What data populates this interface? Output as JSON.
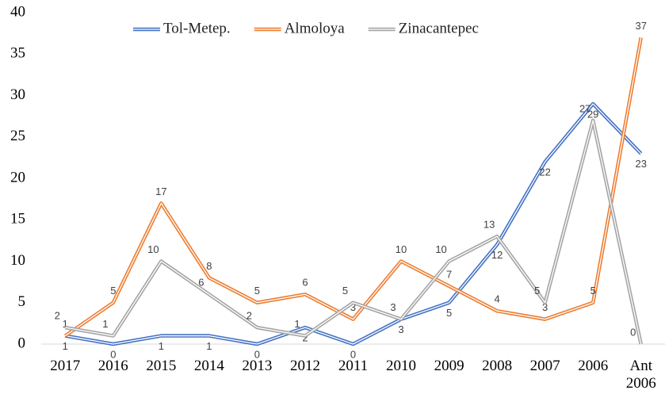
{
  "chart_data": {
    "type": "line",
    "categories": [
      "2017",
      "2016",
      "2015",
      "2014",
      "2013",
      "2012",
      "2011",
      "2010",
      "2009",
      "2008",
      "2007",
      "2006",
      "Ant 2006"
    ],
    "series": [
      {
        "name": "Tol-Metep.",
        "color": "#4472c4",
        "values": [
          1,
          0,
          1,
          1,
          0,
          2,
          0,
          3,
          5,
          12,
          22,
          29,
          23
        ]
      },
      {
        "name": "Almoloya",
        "color": "#ed7d31",
        "values": [
          1,
          5,
          17,
          8,
          5,
          6,
          3,
          10,
          7,
          4,
          3,
          5,
          37
        ]
      },
      {
        "name": "Zinacantepec",
        "color": "#a5a5a5",
        "values": [
          2,
          1,
          10,
          6,
          2,
          1,
          5,
          3,
          10,
          13,
          5,
          27,
          0
        ]
      }
    ],
    "ylim": [
      0,
      40
    ],
    "yticks": [
      0,
      5,
      10,
      15,
      20,
      25,
      30,
      35,
      40
    ],
    "grid": false,
    "legend": "top",
    "data_labels": true
  }
}
